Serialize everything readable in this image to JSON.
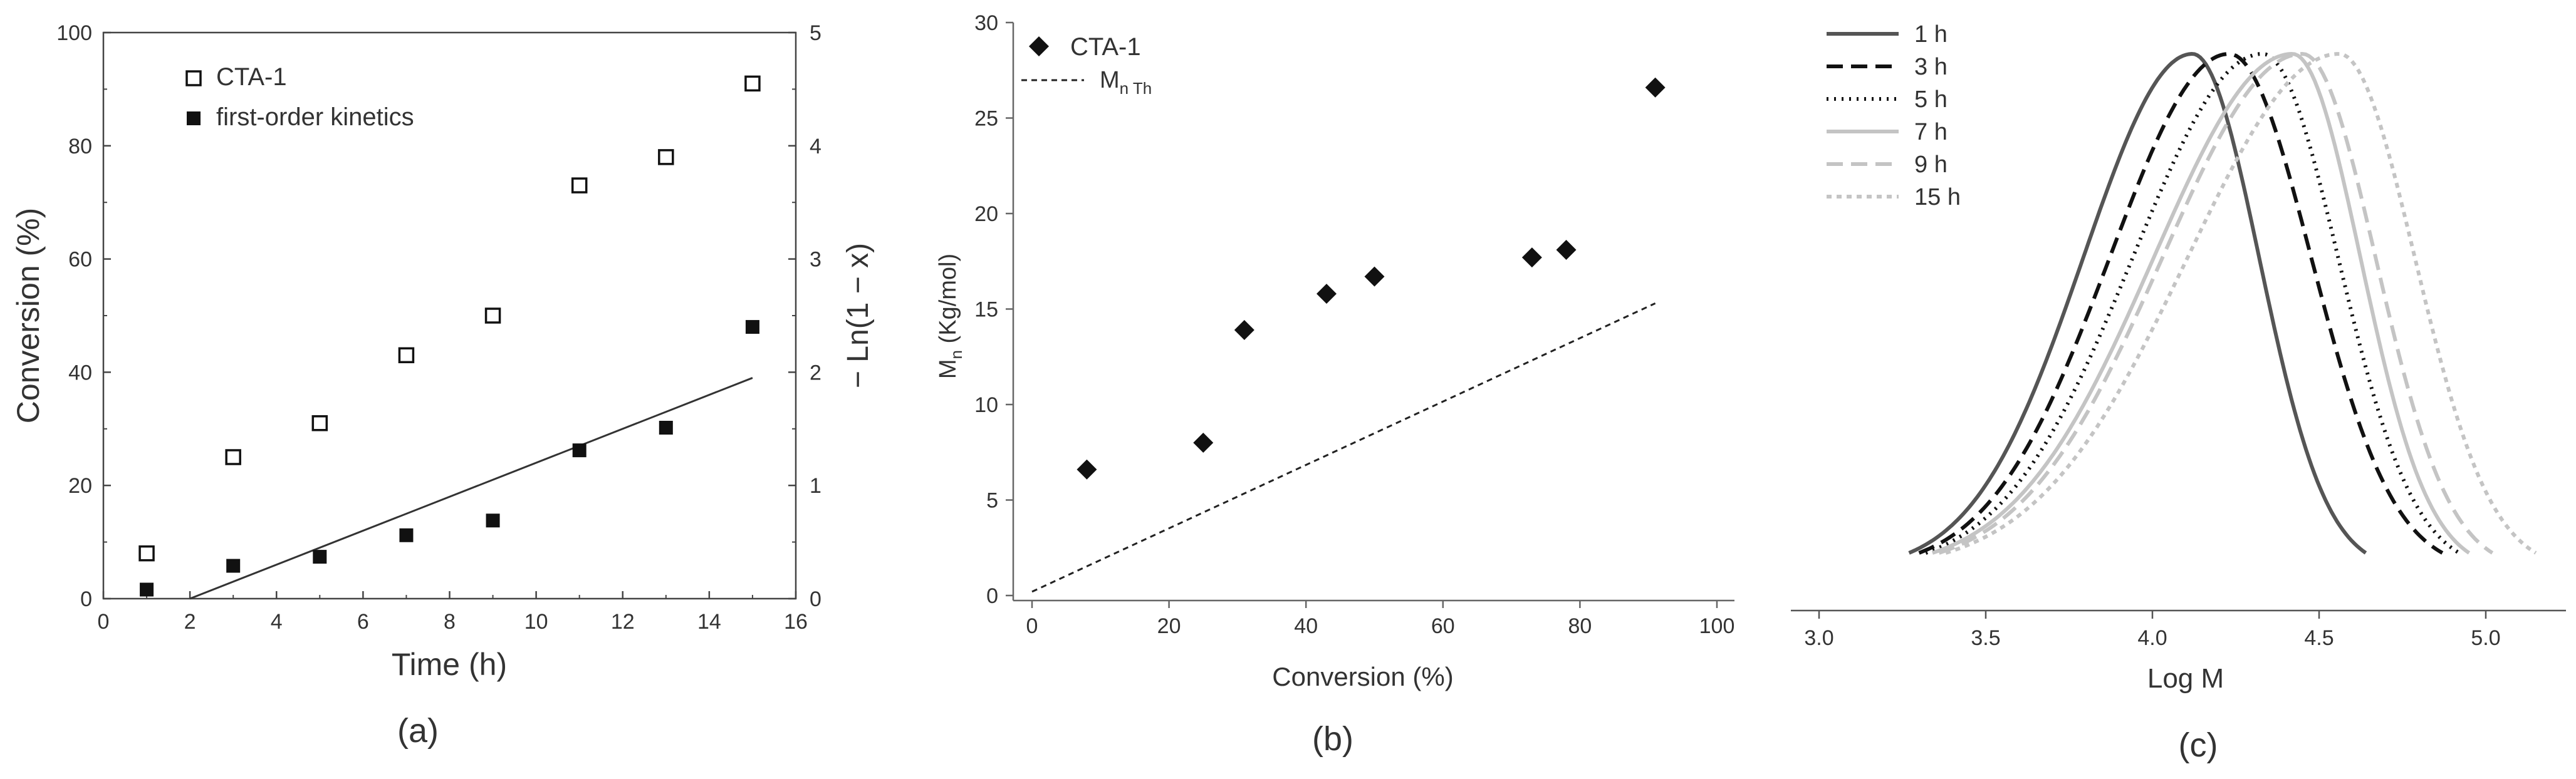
{
  "chart_data": [
    {
      "panel": "a",
      "type": "scatter",
      "panel_label": "(a)",
      "xlabel": "Time (h)",
      "ylabel": "Conversion (%)",
      "y2label": "− Ln(1 − x)",
      "xlim": [
        0,
        16
      ],
      "ylim": [
        0,
        100
      ],
      "y2lim": [
        0,
        5
      ],
      "xticks": [
        "0",
        "2",
        "4",
        "6",
        "8",
        "10",
        "12",
        "14",
        "16"
      ],
      "yticks": [
        "0",
        "20",
        "40",
        "60",
        "80",
        "100"
      ],
      "y2ticks": [
        "0",
        "1",
        "2",
        "3",
        "4",
        "5"
      ],
      "legend": [
        "CTA-1",
        "first-order kinetics"
      ],
      "series": [
        {
          "name": "CTA-1",
          "axis": "left",
          "marker": "open-square",
          "x": [
            1,
            3,
            5,
            7,
            9,
            11,
            13,
            15
          ],
          "y": [
            8,
            25,
            31,
            43,
            50,
            73,
            78,
            91
          ]
        },
        {
          "name": "first-order kinetics",
          "axis": "right",
          "marker": "filled-square",
          "x": [
            1,
            3,
            5,
            7,
            9,
            11,
            13,
            15
          ],
          "y": [
            0.08,
            0.29,
            0.37,
            0.56,
            0.69,
            1.31,
            1.51,
            2.4
          ]
        },
        {
          "name": "linear fit",
          "axis": "right",
          "marker": "line",
          "x": [
            2,
            15
          ],
          "y": [
            0,
            1.95
          ]
        }
      ]
    },
    {
      "panel": "b",
      "type": "scatter",
      "panel_label": "(b)",
      "xlabel": "Conversion (%)",
      "ylabel_main": "M",
      "ylabel_sub": "n",
      "ylabel_rest": " (Kg/mol)",
      "xlim": [
        0,
        100
      ],
      "ylim": [
        0,
        30
      ],
      "xticks": [
        "0",
        "20",
        "40",
        "60",
        "80",
        "100"
      ],
      "yticks": [
        "0",
        "5",
        "10",
        "15",
        "20",
        "25",
        "30"
      ],
      "legend_cta": "CTA-1",
      "legend_th_main": "M",
      "legend_th_sub": "n Th",
      "series": [
        {
          "name": "CTA-1",
          "marker": "diamond",
          "x": [
            8,
            25,
            31,
            43,
            50,
            73,
            78,
            91
          ],
          "y": [
            6.6,
            8.0,
            13.9,
            15.8,
            16.7,
            17.7,
            18.1,
            26.6
          ]
        },
        {
          "name": "Mn Th",
          "marker": "dashed-line",
          "x": [
            0,
            91
          ],
          "y": [
            0.2,
            15.3
          ]
        }
      ]
    },
    {
      "panel": "c",
      "type": "line",
      "panel_label": "(c)",
      "xlabel": "Log M",
      "xlim": [
        3.0,
        5.2
      ],
      "xticks": [
        "3.0",
        "3.5",
        "4.0",
        "4.5",
        "5.0"
      ],
      "legend": [
        "1 h",
        "3 h",
        "5 h",
        "7 h",
        "9 h",
        "15 h"
      ],
      "series": [
        {
          "name": "1 h",
          "peak": 4.12,
          "start": 3.27,
          "end": 4.64,
          "color": "#555555",
          "dash": "none"
        },
        {
          "name": "3 h",
          "peak": 4.23,
          "start": 3.3,
          "end": 4.87,
          "color": "#111111",
          "dash": "26,13"
        },
        {
          "name": "5 h",
          "peak": 4.33,
          "start": 3.32,
          "end": 4.92,
          "color": "#111111",
          "dash": "3,9"
        },
        {
          "name": "7 h",
          "peak": 4.42,
          "start": 3.34,
          "end": 4.95,
          "color": "#c4c4c4",
          "dash": "none"
        },
        {
          "name": "9 h",
          "peak": 4.45,
          "start": 3.36,
          "end": 5.02,
          "color": "#c4c4c4",
          "dash": "26,13"
        },
        {
          "name": "15 h",
          "peak": 4.56,
          "start": 3.38,
          "end": 5.15,
          "color": "#c4c4c4",
          "dash": "8,8"
        }
      ]
    }
  ]
}
